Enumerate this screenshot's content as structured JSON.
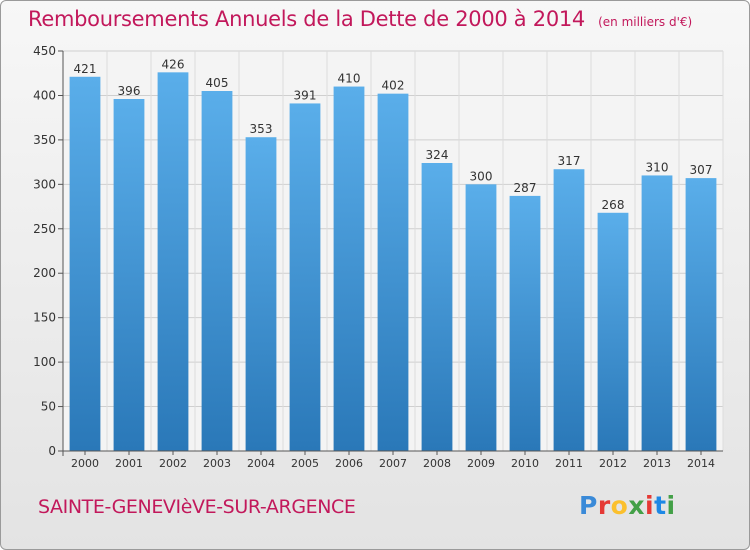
{
  "header": {
    "title": "Remboursements Annuels de la Dette de 2000 à 2014",
    "unit": "(en milliers d'€)"
  },
  "footer": {
    "commune": "SAINTE-GENEVIèVE-SUR-ARGENCE",
    "logo_letters": [
      "P",
      "r",
      "o",
      "x",
      "i",
      "t",
      "i"
    ],
    "logo_colors": [
      "#3a8ad8",
      "#e53935",
      "#fbc02d",
      "#43a047",
      "#e53935",
      "#1e88e5",
      "#43a047"
    ]
  },
  "chart_data": {
    "type": "bar",
    "categories": [
      "2000",
      "2001",
      "2002",
      "2003",
      "2004",
      "2005",
      "2006",
      "2007",
      "2008",
      "2009",
      "2010",
      "2011",
      "2012",
      "2013",
      "2014"
    ],
    "values": [
      421,
      396,
      426,
      405,
      353,
      391,
      410,
      402,
      324,
      300,
      287,
      317,
      268,
      310,
      307
    ],
    "ylim": [
      0,
      450
    ],
    "yticks": [
      0,
      50,
      100,
      150,
      200,
      250,
      300,
      350,
      400,
      450
    ],
    "grid": true,
    "bar_color": "#3d8fd3"
  }
}
